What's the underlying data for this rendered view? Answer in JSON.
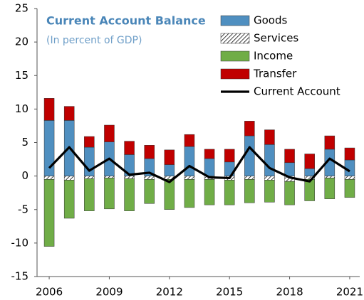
{
  "chart_data": {
    "type": "bar",
    "title": "Current Account Balance",
    "subtitle": "(In percent of GDP)",
    "x": [
      2006,
      2007,
      2008,
      2009,
      2010,
      2011,
      2012,
      2013,
      2014,
      2015,
      2016,
      2017,
      2018,
      2019,
      2020,
      2021
    ],
    "xlim": [
      2005.5,
      2021.5
    ],
    "xticks": [
      2006,
      2009,
      2012,
      2015,
      2018,
      2021
    ],
    "ylim": [
      -15,
      25
    ],
    "yticks": [
      -15,
      -10,
      -5,
      0,
      5,
      10,
      15,
      20,
      25
    ],
    "series": [
      {
        "name": "Goods",
        "color": "#4f8fc0",
        "values": [
          8.3,
          8.3,
          4.3,
          5.1,
          3.2,
          2.6,
          1.7,
          4.4,
          2.6,
          2.1,
          6.0,
          4.7,
          2.0,
          1.1,
          4.0,
          2.4
        ]
      },
      {
        "name": "Services",
        "color": "#000000",
        "pattern": "hatch",
        "values": [
          -0.5,
          -0.6,
          -0.4,
          -0.3,
          -0.4,
          -0.5,
          -0.5,
          -0.5,
          -0.5,
          -0.6,
          -0.5,
          -0.6,
          -0.8,
          -0.5,
          -0.3,
          -0.5
        ]
      },
      {
        "name": "Income",
        "color": "#70ad47",
        "values": [
          -10.0,
          -5.7,
          -4.8,
          -4.6,
          -4.8,
          -3.6,
          -4.5,
          -4.2,
          -3.8,
          -3.7,
          -3.5,
          -3.3,
          -3.5,
          -3.2,
          -3.1,
          -2.7
        ]
      },
      {
        "name": "Transfer",
        "color": "#c00000",
        "values": [
          3.3,
          2.1,
          1.6,
          2.5,
          2.0,
          2.0,
          2.2,
          1.8,
          1.4,
          1.9,
          2.2,
          2.2,
          2.0,
          2.2,
          2.0,
          1.8
        ]
      },
      {
        "name": "Current Account",
        "type": "line",
        "color": "#000000",
        "values": [
          1.2,
          4.3,
          0.8,
          2.6,
          0.2,
          0.5,
          -0.9,
          1.5,
          -0.2,
          -0.3,
          4.3,
          1.2,
          -0.2,
          -0.8,
          2.6,
          0.7
        ]
      }
    ]
  }
}
